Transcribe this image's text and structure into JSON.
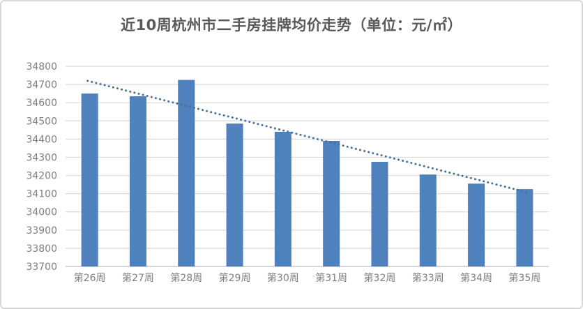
{
  "card": {
    "background": "#ffffff",
    "border_color": "#d9d9d9"
  },
  "chart_data": {
    "type": "bar",
    "title": "近10周杭州市二手房挂牌均价走势（单位：元/㎡）",
    "title_color": "#595959",
    "categories": [
      "第26周",
      "第27周",
      "第28周",
      "第29周",
      "第30周",
      "第31周",
      "第32周",
      "第33周",
      "第34周",
      "第35周"
    ],
    "values": [
      34650,
      34635,
      34725,
      34485,
      34440,
      34390,
      34275,
      34205,
      34155,
      34125
    ],
    "bar_color": "#4f81bd",
    "trendline": {
      "type": "linear",
      "style": "dotted",
      "color": "#44709d",
      "start_value": 34720,
      "end_value": 34105
    },
    "xlabel": "",
    "ylabel": "",
    "ylim": [
      33700,
      34800
    ],
    "ytick_step": 100,
    "grid": true,
    "gridline_color": "#d9d9d9",
    "axis_line_color": "#c9c9c9",
    "axis_label_color": "#7f7f7f",
    "legend": "none"
  }
}
